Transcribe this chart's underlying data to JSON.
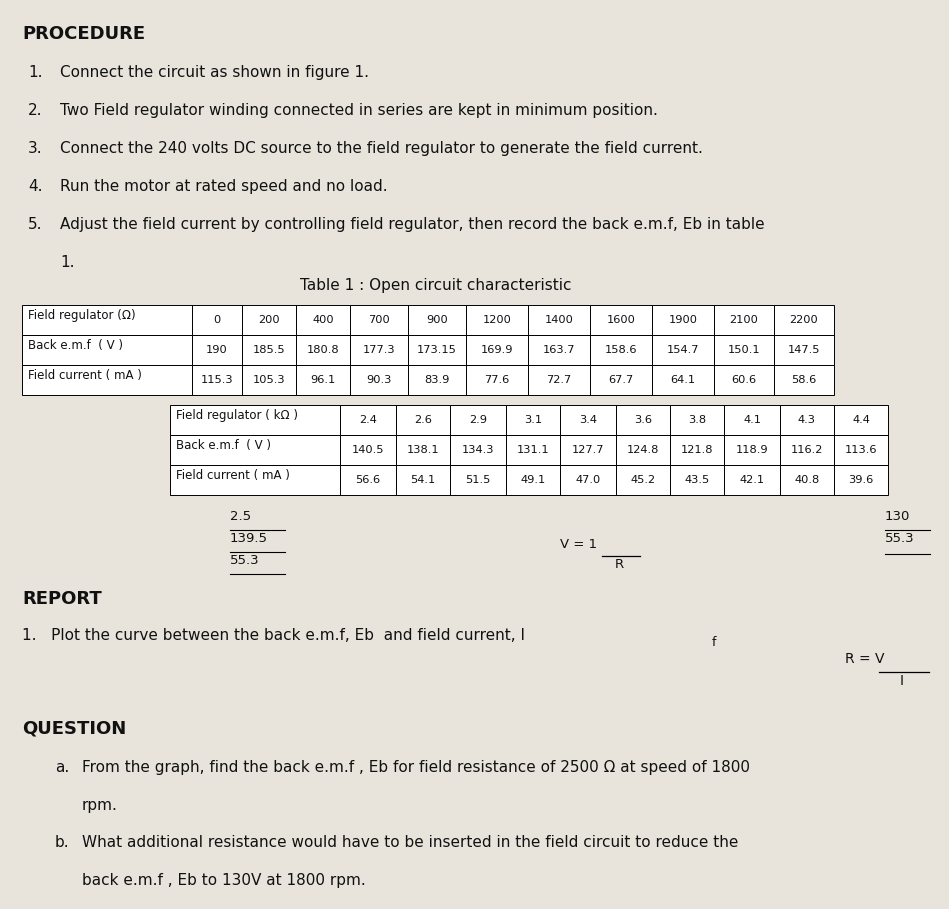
{
  "bg_color": "#e8e4dc",
  "procedure_title": "PROCEDURE",
  "steps": [
    [
      "1.",
      "Connect the circuit as shown in figure 1."
    ],
    [
      "2.",
      "Two Field regulator winding connected in series are kept in minimum position."
    ],
    [
      "3.",
      "Connect the 240 volts DC source to the field regulator to generate the field current."
    ],
    [
      "4.",
      "Run the motor at rated speed and no load."
    ],
    [
      "5.",
      "Adjust the field current by controlling field regulator, then record the back e.m.f, Eb in table"
    ],
    [
      "",
      "1."
    ]
  ],
  "table_title": "Table 1 : Open circuit characteristic",
  "t1_col0_label": "Field regulator (Ω)",
  "t1_row1_label": "Back e.m.f  ( V )",
  "t1_row2_label": "Field current ( mA )",
  "t1_headers": [
    "0",
    "200",
    "400",
    "700",
    "900",
    "1200",
    "1400",
    "1600",
    "1900",
    "2100",
    "2200"
  ],
  "t1_row1": [
    "190",
    "185.5",
    "180.8",
    "177.3",
    "173.15",
    "169.9",
    "163.7",
    "158.6",
    "154.7",
    "150.1",
    "147.5"
  ],
  "t1_row2": [
    "115.3",
    "105.3",
    "96.1",
    "90.3",
    "83.9",
    "77.6",
    "72.7",
    "67.7",
    "64.1",
    "60.6",
    "58.6"
  ],
  "t2_col0_label": "Field regulator ( kΩ )",
  "t2_row1_label": "Back e.m.f  ( V )",
  "t2_row2_label": "Field current ( mA )",
  "t2_headers": [
    "2.4",
    "2.6",
    "2.9",
    "3.1",
    "3.4",
    "3.6",
    "3.8",
    "4.1",
    "4.3",
    "4.4"
  ],
  "t2_row1": [
    "140.5",
    "138.1",
    "134.3",
    "131.1",
    "127.7",
    "124.8",
    "121.8",
    "118.9",
    "116.2",
    "113.6"
  ],
  "t2_row2": [
    "56.6",
    "54.1",
    "51.5",
    "49.1",
    "47.0",
    "45.2",
    "43.5",
    "42.1",
    "40.8",
    "39.6"
  ],
  "ann_left": [
    "2.5",
    "139.5",
    "55.3"
  ],
  "ann_right": [
    "130",
    "55.3"
  ],
  "v_line1": "V = 1",
  "v_line2": "R",
  "r_line1": "R = V",
  "r_line2": "I",
  "report_title": "REPORT",
  "report_item": "1.   Plot the curve between the back e.m.f, Eb  and field current, I",
  "report_sub": "f",
  "question_title": "QUESTION",
  "qa_prefix": "a.",
  "qa_line1": "From the graph, find the back e.m.f , Eb for field resistance of 2500 Ω at speed of 1800",
  "qa_line2": "rpm.",
  "qb_prefix": "b.",
  "qb_line1": "What additional resistance would have to be inserted in the field circuit to reduce the",
  "qb_line2": "back e.m.f , Eb to 130V at 1800 rpm."
}
